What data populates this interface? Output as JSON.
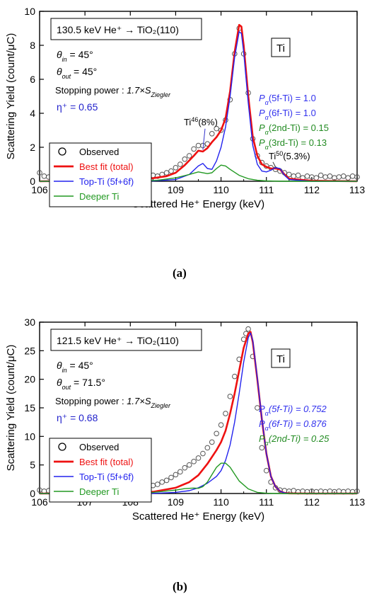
{
  "chart_data": [
    {
      "type": "line",
      "panel_label": "(a)",
      "xlabel": "Scattered He⁺ Energy (keV)",
      "ylabel": "Scattering Yield (count/μC)",
      "xlim": [
        106,
        113
      ],
      "ylim": [
        0,
        10
      ],
      "xticks": [
        "106",
        "107",
        "108",
        "109",
        "110",
        "111",
        "112",
        "113"
      ],
      "yticks": [
        "0",
        "2",
        "4",
        "6",
        "8",
        "10"
      ],
      "info_box": "130.5 keV He⁺ → TiO₂(110)",
      "element_label": "Ti",
      "theta_in": "θin = 45°",
      "theta_out": "θout = 45°",
      "stopping_power": "Stopping power : 1.7×SZiegler",
      "eta": "η⁺ = 0.65",
      "probabilities": [
        {
          "text": "Pα(5f-Ti) = 1.0",
          "color": "#3333ee"
        },
        {
          "text": "Pα(6f-Ti) = 1.0",
          "color": "#3333ee"
        },
        {
          "text": "Pα(2nd-Ti) = 0.15",
          "color": "#228b22"
        },
        {
          "text": "Pα(3rd-Ti) = 0.13",
          "color": "#228b22"
        }
      ],
      "annotations": [
        {
          "text": "Ti⁴⁶(8%)",
          "x": 109.65,
          "y": 2.0
        },
        {
          "text": "Ti⁵⁰(5.3%)",
          "x": 111.35,
          "y": 0.75
        }
      ],
      "legend": [
        {
          "label": "Observed",
          "kind": "marker",
          "color": "#000000"
        },
        {
          "label": "Best fit (total)",
          "kind": "line",
          "color": "#ee1111"
        },
        {
          "label": "Top-Ti (5f+6f)",
          "kind": "line",
          "color": "#2222ee"
        },
        {
          "label": "Deeper Ti",
          "kind": "line",
          "color": "#229922"
        }
      ],
      "series": [
        {
          "name": "Observed",
          "color": "#555555",
          "x": [
            106.0,
            106.1,
            106.2,
            106.3,
            106.4,
            106.5,
            106.6,
            106.7,
            106.8,
            106.9,
            107.0,
            107.1,
            107.2,
            107.3,
            107.4,
            107.5,
            107.6,
            107.7,
            107.8,
            107.9,
            108.0,
            108.1,
            108.2,
            108.3,
            108.4,
            108.5,
            108.6,
            108.7,
            108.8,
            108.9,
            109.0,
            109.1,
            109.2,
            109.3,
            109.4,
            109.5,
            109.6,
            109.7,
            109.8,
            109.9,
            110.0,
            110.1,
            110.2,
            110.3,
            110.4,
            110.5,
            110.6,
            110.7,
            110.8,
            110.9,
            111.0,
            111.1,
            111.2,
            111.3,
            111.4,
            111.5,
            111.6,
            111.7,
            111.8,
            111.9,
            112.0,
            112.1,
            112.2,
            112.3,
            112.4,
            112.5,
            112.6,
            112.7,
            112.8,
            112.9,
            113.0
          ],
          "y": [
            0.5,
            0.3,
            0.25,
            0.35,
            0.2,
            0.3,
            0.25,
            0.2,
            0.3,
            0.25,
            0.2,
            0.3,
            0.25,
            0.2,
            0.3,
            0.25,
            0.3,
            0.2,
            0.25,
            0.3,
            0.25,
            0.2,
            0.3,
            0.25,
            0.3,
            0.35,
            0.3,
            0.4,
            0.5,
            0.6,
            0.8,
            1.0,
            1.3,
            1.5,
            1.9,
            2.1,
            2.1,
            2.2,
            2.8,
            3.1,
            3.0,
            3.6,
            4.8,
            7.5,
            9.0,
            7.5,
            5.2,
            2.5,
            1.5,
            1.1,
            0.9,
            0.8,
            0.7,
            0.6,
            0.5,
            0.4,
            0.3,
            0.35,
            0.2,
            0.3,
            0.25,
            0.2,
            0.35,
            0.25,
            0.3,
            0.2,
            0.25,
            0.3,
            0.2,
            0.3,
            0.25
          ]
        },
        {
          "name": "Best fit (total)",
          "color": "#ee1111",
          "x": [
            106.0,
            107.0,
            108.0,
            108.5,
            108.8,
            109.0,
            109.2,
            109.4,
            109.5,
            109.6,
            109.7,
            109.8,
            109.9,
            110.0,
            110.1,
            110.2,
            110.3,
            110.4,
            110.45,
            110.5,
            110.6,
            110.7,
            110.8,
            110.9,
            111.0,
            111.1,
            111.2,
            111.3,
            111.4,
            111.5,
            112.0,
            113.0
          ],
          "y": [
            0.0,
            0.02,
            0.1,
            0.18,
            0.3,
            0.5,
            0.95,
            1.5,
            1.8,
            1.75,
            1.95,
            2.3,
            2.6,
            3.0,
            3.7,
            5.3,
            7.6,
            9.2,
            9.1,
            8.0,
            5.0,
            2.6,
            1.5,
            1.0,
            0.85,
            0.75,
            0.75,
            0.7,
            0.4,
            0.15,
            0.03,
            0.0
          ]
        },
        {
          "name": "Top-Ti (5f+6f)",
          "color": "#2222ee",
          "x": [
            106.0,
            108.5,
            109.0,
            109.3,
            109.5,
            109.6,
            109.7,
            109.8,
            109.9,
            110.0,
            110.1,
            110.2,
            110.3,
            110.4,
            110.45,
            110.5,
            110.6,
            110.7,
            110.8,
            110.9,
            111.0,
            111.1,
            111.2,
            111.3,
            111.4,
            111.5,
            112.0,
            113.0
          ],
          "y": [
            0.0,
            0.02,
            0.1,
            0.4,
            0.9,
            1.05,
            0.75,
            0.7,
            1.2,
            2.0,
            3.2,
            5.0,
            7.3,
            8.8,
            8.7,
            7.6,
            4.6,
            2.1,
            1.0,
            0.6,
            0.55,
            0.65,
            0.8,
            0.75,
            0.35,
            0.1,
            0.0,
            0.0
          ]
        },
        {
          "name": "Deeper Ti",
          "color": "#229922",
          "x": [
            106.0,
            108.2,
            108.6,
            109.0,
            109.3,
            109.5,
            109.7,
            109.8,
            109.9,
            110.0,
            110.1,
            110.2,
            110.4,
            110.6,
            110.8,
            111.0,
            111.3,
            113.0
          ],
          "y": [
            0.0,
            0.01,
            0.06,
            0.2,
            0.4,
            0.55,
            0.45,
            0.5,
            0.75,
            0.95,
            0.9,
            0.7,
            0.35,
            0.15,
            0.06,
            0.02,
            0.0,
            0.0
          ]
        }
      ]
    },
    {
      "type": "line",
      "panel_label": "(b)",
      "xlabel": "Scattered He⁺ Energy (keV)",
      "ylabel": "Scattering Yield (count/μC)",
      "xlim": [
        106,
        113
      ],
      "ylim": [
        0,
        30
      ],
      "xticks": [
        "106",
        "107",
        "108",
        "109",
        "110",
        "111",
        "112",
        "113"
      ],
      "yticks": [
        "0",
        "5",
        "10",
        "15",
        "20",
        "25",
        "30"
      ],
      "info_box": "121.5 keV He⁺ → TiO₂(110)",
      "element_label": "Ti",
      "theta_in": "θin = 45°",
      "theta_out": "θout = 71.5°",
      "stopping_power": "Stopping power : 1.7×SZiegler",
      "eta": "η⁺ = 0.68",
      "probabilities": [
        {
          "text": "Pα(5f-Ti) = 0.752",
          "color": "#3333ee"
        },
        {
          "text": "Pα(6f-Ti) = 0.876",
          "color": "#3333ee"
        },
        {
          "text": "Pα(2nd-Ti) = 0.25",
          "color": "#228b22"
        }
      ],
      "annotations": [],
      "legend": [
        {
          "label": "Observed",
          "kind": "marker",
          "color": "#000000"
        },
        {
          "label": "Best fit (total)",
          "kind": "line",
          "color": "#ee1111"
        },
        {
          "label": "Top-Ti (5f+6f)",
          "kind": "line",
          "color": "#2222ee"
        },
        {
          "label": "Deeper Ti",
          "kind": "line",
          "color": "#229922"
        }
      ],
      "series": [
        {
          "name": "Observed",
          "color": "#555555",
          "x": [
            106.0,
            106.1,
            106.2,
            106.3,
            106.4,
            106.5,
            106.6,
            106.7,
            106.8,
            106.9,
            107.0,
            107.1,
            107.2,
            107.3,
            107.4,
            107.5,
            107.6,
            107.7,
            107.8,
            107.9,
            108.0,
            108.1,
            108.2,
            108.3,
            108.4,
            108.5,
            108.6,
            108.7,
            108.8,
            108.9,
            109.0,
            109.1,
            109.2,
            109.3,
            109.4,
            109.5,
            109.6,
            109.7,
            109.8,
            109.9,
            110.0,
            110.1,
            110.2,
            110.3,
            110.4,
            110.5,
            110.55,
            110.6,
            110.7,
            110.8,
            110.9,
            111.0,
            111.1,
            111.2,
            111.3,
            111.4,
            111.5,
            111.6,
            111.7,
            111.8,
            111.9,
            112.0,
            112.1,
            112.2,
            112.3,
            112.4,
            112.5,
            112.6,
            112.7,
            112.8,
            112.9,
            113.0
          ],
          "y": [
            0.6,
            0.4,
            0.5,
            0.3,
            0.5,
            0.4,
            0.3,
            0.5,
            0.4,
            0.3,
            0.4,
            0.5,
            0.3,
            0.4,
            0.5,
            0.3,
            0.4,
            0.3,
            0.5,
            0.4,
            0.5,
            0.6,
            0.8,
            0.9,
            1.0,
            1.4,
            1.6,
            2.0,
            2.3,
            2.8,
            3.3,
            3.8,
            4.5,
            5.0,
            5.6,
            6.2,
            7.0,
            8.0,
            9.0,
            10.5,
            12.0,
            14.0,
            17.0,
            20.5,
            23.5,
            27.0,
            28.0,
            28.8,
            24.0,
            15.0,
            8.0,
            4.0,
            2.0,
            1.0,
            0.6,
            0.5,
            0.4,
            0.5,
            0.3,
            0.4,
            0.3,
            0.4,
            0.3,
            0.4,
            0.3,
            0.4,
            0.3,
            0.4,
            0.3,
            0.4,
            0.3,
            0.4
          ]
        },
        {
          "name": "Best fit (total)",
          "color": "#ee1111",
          "x": [
            106.0,
            107.0,
            108.0,
            108.5,
            109.0,
            109.3,
            109.5,
            109.7,
            109.9,
            110.0,
            110.1,
            110.2,
            110.3,
            110.4,
            110.5,
            110.6,
            110.65,
            110.7,
            110.8,
            110.9,
            111.0,
            111.1,
            111.2,
            111.3,
            111.4,
            111.5,
            112.0,
            113.0
          ],
          "y": [
            0.0,
            0.02,
            0.1,
            0.3,
            1.0,
            2.0,
            3.2,
            5.2,
            7.6,
            9.0,
            11.0,
            14.0,
            17.5,
            21.5,
            25.5,
            28.0,
            28.3,
            26.5,
            20.0,
            13.0,
            7.0,
            3.0,
            1.2,
            0.4,
            0.1,
            0.03,
            0.0,
            0.0
          ]
        },
        {
          "name": "Top-Ti (5f+6f)",
          "color": "#2222ee",
          "x": [
            106.0,
            108.5,
            109.0,
            109.3,
            109.5,
            109.7,
            109.9,
            110.0,
            110.1,
            110.2,
            110.3,
            110.4,
            110.5,
            110.6,
            110.65,
            110.7,
            110.8,
            110.9,
            111.0,
            111.1,
            111.2,
            111.3,
            111.4,
            111.5,
            112.0,
            113.0
          ],
          "y": [
            0.0,
            0.02,
            0.2,
            0.5,
            1.0,
            1.8,
            3.0,
            4.0,
            5.8,
            8.5,
            12.5,
            17.5,
            23.0,
            27.3,
            28.1,
            26.8,
            20.2,
            13.1,
            7.0,
            3.0,
            1.2,
            0.4,
            0.1,
            0.03,
            0.0,
            0.0
          ]
        },
        {
          "name": "Deeper Ti",
          "color": "#229922",
          "x": [
            106.0,
            108.0,
            108.5,
            109.0,
            109.2,
            109.4,
            109.5,
            109.6,
            109.7,
            109.8,
            109.9,
            110.0,
            110.1,
            110.2,
            110.3,
            110.4,
            110.6,
            110.8,
            111.0,
            111.3,
            113.0
          ],
          "y": [
            0.0,
            0.05,
            0.2,
            0.6,
            0.85,
            0.95,
            0.9,
            1.2,
            2.0,
            3.3,
            4.6,
            5.3,
            5.3,
            4.6,
            3.4,
            2.2,
            0.8,
            0.2,
            0.05,
            0.0,
            0.0
          ]
        }
      ]
    }
  ]
}
